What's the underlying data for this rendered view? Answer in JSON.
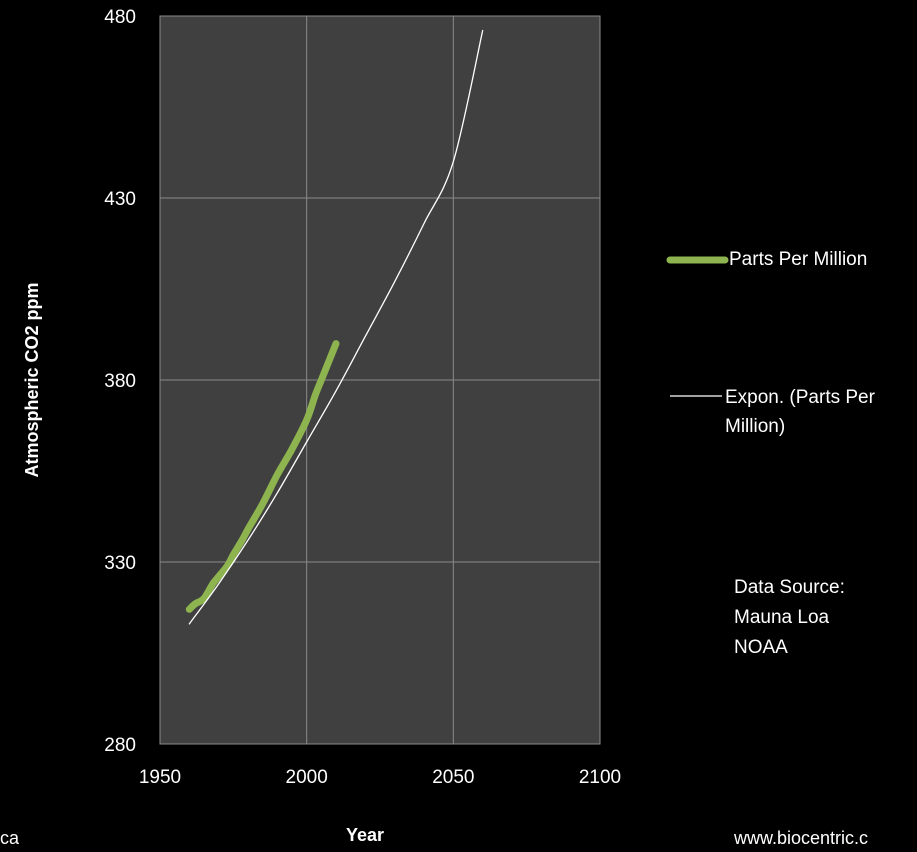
{
  "chart_data": {
    "type": "line",
    "xlabel": "Year",
    "ylabel": "Atmospheric CO2 ppm",
    "xlim": [
      1950,
      2100
    ],
    "ylim": [
      280,
      480
    ],
    "x_ticks": [
      "1950",
      "2000",
      "2050",
      "2100"
    ],
    "y_ticks": [
      "280",
      "330",
      "380",
      "430",
      "480"
    ],
    "grid": true,
    "legend_position": "right",
    "series": [
      {
        "name": "Parts Per Million",
        "color": "#8db44e",
        "x": [
          1960,
          1962,
          1965,
          1968,
          1970,
          1973,
          1975,
          1978,
          1980,
          1985,
          1990,
          1995,
          2000,
          2003,
          2005,
          2008,
          2010
        ],
        "y": [
          317,
          318.5,
          320,
          324,
          326,
          329,
          332,
          336,
          339,
          346,
          354,
          361,
          369,
          376,
          380,
          386,
          390
        ]
      },
      {
        "name": "Expon. (Parts Per Million)",
        "color": "#ffffff",
        "type": "trendline",
        "x": [
          1960,
          1970,
          1980,
          1990,
          2000,
          2010,
          2020,
          2030,
          2040,
          2050,
          2060
        ],
        "y": [
          313,
          324,
          336,
          349,
          363,
          377,
          392,
          407,
          423,
          440,
          476
        ]
      }
    ]
  },
  "legend": {
    "series1": "Parts Per Million",
    "series2_line1": "Expon. (Parts Per",
    "series2_line2": "Million)"
  },
  "source": {
    "line1": "Data Source:",
    "line2": "Mauna Loa",
    "line3": "NOAA"
  },
  "footer": {
    "left": "ca",
    "right": "www.biocentric.c"
  }
}
